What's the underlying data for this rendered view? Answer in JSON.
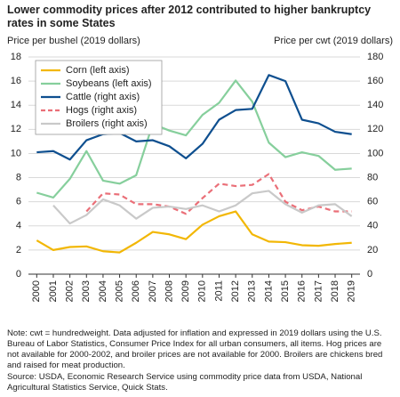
{
  "chart_data": {
    "type": "line",
    "title": "Lower commodity prices after 2012 contributed to higher bankruptcy rates in some States",
    "y_label": "Price per bushel (2019 dollars)",
    "y2_label": "Price per cwt (2019 dollars)",
    "categories": [
      "2000",
      "2001",
      "2002",
      "2003",
      "2004",
      "2005",
      "2006",
      "2007",
      "2008",
      "2009",
      "2010",
      "2011",
      "2012",
      "2013",
      "2014",
      "2015",
      "2016",
      "2017",
      "2018",
      "2019"
    ],
    "ylim": [
      0,
      18
    ],
    "yticks": [
      0,
      2,
      4,
      6,
      8,
      10,
      12,
      14,
      16,
      18
    ],
    "y2lim": [
      0,
      180
    ],
    "y2ticks": [
      0,
      20,
      40,
      60,
      80,
      100,
      120,
      140,
      160,
      180
    ],
    "grid": true,
    "legend": "upper left",
    "series": [
      {
        "name": "Corn (left axis)",
        "color": "#f2b705",
        "axis": "y",
        "values": [
          2.8,
          2.0,
          2.25,
          2.3,
          1.9,
          1.8,
          2.6,
          3.5,
          3.3,
          2.9,
          4.1,
          4.8,
          5.2,
          3.3,
          2.7,
          2.65,
          2.4,
          2.35,
          2.5,
          2.6
        ]
      },
      {
        "name": "Soybeans (left axis)",
        "color": "#86cf9c",
        "axis": "y",
        "values": [
          6.75,
          6.35,
          7.9,
          10.2,
          7.75,
          7.5,
          8.2,
          12.45,
          11.9,
          11.5,
          13.2,
          14.2,
          16.05,
          14.3,
          10.9,
          9.7,
          10.1,
          9.8,
          8.65,
          8.75
        ]
      },
      {
        "name": "Cattle (right axis)",
        "color": "#0e4f8f",
        "axis": "y2",
        "values": [
          101,
          102,
          95,
          111,
          116,
          117,
          110,
          111,
          106,
          96,
          108,
          128,
          136,
          137,
          165,
          160,
          128,
          125,
          118,
          116
        ]
      },
      {
        "name": "Hogs (right axis)",
        "color": "#ea6f78",
        "axis": "y2",
        "dashed": true,
        "values": [
          null,
          null,
          null,
          52,
          67,
          66,
          58,
          58,
          56,
          50,
          63,
          75,
          73,
          74,
          83,
          60,
          53,
          56,
          52,
          52
        ]
      },
      {
        "name": "Broilers (right axis)",
        "color": "#c9c9c9",
        "axis": "y2",
        "values": [
          null,
          57,
          42,
          49,
          62,
          57,
          46,
          55,
          56,
          54,
          57,
          52,
          57,
          67,
          69,
          58,
          51,
          57,
          58,
          48
        ]
      }
    ]
  },
  "note": "Note: cwt = hundredweight. Data adjusted for inflation and expressed in 2019 dollars using the U.S. Bureau of Labor Statistics, Consumer Price Index for all urban consumers, all items. Hog prices are not available for 2000-2002, and broiler prices are not available for 2000. Broilers are chickens bred and raised for meat production.",
  "source": "Source: USDA, Economic Research Service using commodity price data from USDA, National Agricultural Statistics Service, Quick Stats."
}
